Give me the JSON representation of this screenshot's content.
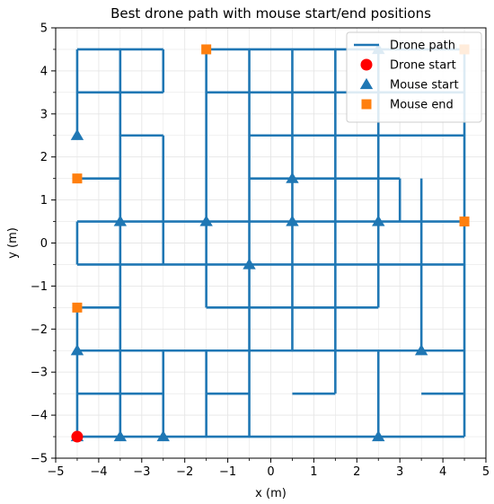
{
  "chart_data": {
    "type": "line",
    "title": "Best drone path with mouse start/end positions",
    "xlabel": "x (m)",
    "ylabel": "y (m)",
    "xlim": [
      -5,
      5
    ],
    "ylim": [
      -5,
      5
    ],
    "xticks": [
      -5,
      -4,
      -3,
      -2,
      -1,
      0,
      1,
      2,
      3,
      4,
      5
    ],
    "yticks": [
      -5,
      -4,
      -3,
      -2,
      -1,
      0,
      1,
      2,
      3,
      4,
      5
    ],
    "xtick_labels": [
      "−5",
      "−4",
      "−3",
      "−2",
      "−1",
      "0",
      "1",
      "2",
      "3",
      "4",
      "5"
    ],
    "ytick_labels": [
      "−5",
      "−4",
      "−3",
      "−2",
      "−1",
      "0",
      "1",
      "2",
      "3",
      "4",
      "5"
    ],
    "grid": true,
    "legend_position": "top-right",
    "colors": {
      "drone_path": "#1f77b4",
      "drone_start": "#ff0000",
      "mouse_start": "#1f77b4",
      "mouse_end": "#ff7f0e",
      "grid": "#e6e6e6"
    },
    "series": [
      {
        "name": "Drone path",
        "kind": "line",
        "segments": [
          [
            [
              -4.5,
              -4.5
            ],
            [
              4.5,
              -4.5
            ]
          ],
          [
            [
              -4.5,
              -4.5
            ],
            [
              -4.5,
              -3.5
            ]
          ],
          [
            [
              -4.5,
              -3.5
            ],
            [
              -2.5,
              -3.5
            ]
          ],
          [
            [
              -4.5,
              -3.5
            ],
            [
              -4.5,
              -2.5
            ]
          ],
          [
            [
              -4.5,
              -2.5
            ],
            [
              4.5,
              -2.5
            ]
          ],
          [
            [
              -4.5,
              -2.5
            ],
            [
              -4.5,
              -1.5
            ]
          ],
          [
            [
              -4.5,
              -1.5
            ],
            [
              -3.5,
              -1.5
            ]
          ],
          [
            [
              -4.5,
              -0.5
            ],
            [
              -4.5,
              0.5
            ]
          ],
          [
            [
              -4.5,
              -0.5
            ],
            [
              3.5,
              -0.5
            ]
          ],
          [
            [
              -4.5,
              0.5
            ],
            [
              4.5,
              0.5
            ]
          ],
          [
            [
              -4.5,
              1.5
            ],
            [
              -3.5,
              1.5
            ]
          ],
          [
            [
              -4.5,
              2.5
            ],
            [
              -4.5,
              4.5
            ]
          ],
          [
            [
              -4.5,
              3.5
            ],
            [
              -2.5,
              3.5
            ]
          ],
          [
            [
              -4.5,
              4.5
            ],
            [
              -2.5,
              4.5
            ]
          ],
          [
            [
              -3.5,
              -4.5
            ],
            [
              -3.5,
              4.5
            ]
          ],
          [
            [
              -3.5,
              2.5
            ],
            [
              -2.5,
              2.5
            ]
          ],
          [
            [
              -2.5,
              -4.5
            ],
            [
              -2.5,
              -2.5
            ]
          ],
          [
            [
              -2.5,
              -0.5
            ],
            [
              -2.5,
              2.5
            ]
          ],
          [
            [
              -2.5,
              3.5
            ],
            [
              -2.5,
              4.5
            ]
          ],
          [
            [
              -1.5,
              -4.5
            ],
            [
              -1.5,
              -3.5
            ]
          ],
          [
            [
              -1.5,
              -3.5
            ],
            [
              -0.5,
              -3.5
            ]
          ],
          [
            [
              -1.5,
              -2.5
            ],
            [
              -1.5,
              -3.5
            ]
          ],
          [
            [
              -1.5,
              -1.5
            ],
            [
              -1.5,
              4.5
            ]
          ],
          [
            [
              -1.5,
              3.5
            ],
            [
              4.5,
              3.5
            ]
          ],
          [
            [
              -1.5,
              4.5
            ],
            [
              4.5,
              4.5
            ]
          ],
          [
            [
              -1.5,
              -1.5
            ],
            [
              1.5,
              -1.5
            ]
          ],
          [
            [
              -0.5,
              -4.5
            ],
            [
              -0.5,
              4.5
            ]
          ],
          [
            [
              0.5,
              -3.5
            ],
            [
              1.5,
              -3.5
            ]
          ],
          [
            [
              0.5,
              -2.5
            ],
            [
              0.5,
              4.5
            ]
          ],
          [
            [
              1.5,
              -3.5
            ],
            [
              1.5,
              4.5
            ]
          ],
          [
            [
              0.5,
              -1.5
            ],
            [
              2.5,
              -1.5
            ]
          ],
          [
            [
              2.5,
              -4.5
            ],
            [
              2.5,
              -2.5
            ]
          ],
          [
            [
              2.5,
              -1.5
            ],
            [
              2.5,
              4.5
            ]
          ],
          [
            [
              -0.5,
              2.5
            ],
            [
              4.5,
              2.5
            ]
          ],
          [
            [
              -0.5,
              1.5
            ],
            [
              3.0,
              1.5
            ]
          ],
          [
            [
              3.0,
              1.5
            ],
            [
              3.0,
              0.5
            ]
          ],
          [
            [
              3.5,
              -2.5
            ],
            [
              3.5,
              1.5
            ]
          ],
          [
            [
              3.5,
              -3.5
            ],
            [
              4.5,
              -3.5
            ]
          ],
          [
            [
              3.5,
              -0.5
            ],
            [
              4.5,
              -0.5
            ]
          ],
          [
            [
              4.5,
              -4.5
            ],
            [
              4.5,
              4.5
            ]
          ]
        ]
      },
      {
        "name": "Drone start",
        "kind": "circle",
        "points": [
          [
            -4.5,
            -4.5
          ]
        ]
      },
      {
        "name": "Mouse start",
        "kind": "triangle",
        "points": [
          [
            -4.5,
            2.5
          ],
          [
            -4.5,
            -2.5
          ],
          [
            -4.5,
            -4.5
          ],
          [
            -3.5,
            0.5
          ],
          [
            -3.5,
            -4.5
          ],
          [
            -2.5,
            -4.5
          ],
          [
            -1.5,
            0.5
          ],
          [
            -0.5,
            -0.5
          ],
          [
            0.5,
            0.5
          ],
          [
            0.5,
            1.5
          ],
          [
            2.5,
            0.5
          ],
          [
            2.5,
            -4.5
          ],
          [
            3.5,
            -2.5
          ],
          [
            2.5,
            4.5
          ]
        ]
      },
      {
        "name": "Mouse end",
        "kind": "square",
        "points": [
          [
            -1.5,
            4.5
          ],
          [
            -4.5,
            1.5
          ],
          [
            -4.5,
            -1.5
          ],
          [
            4.5,
            0.5
          ],
          [
            4.5,
            4.5
          ]
        ]
      }
    ]
  }
}
